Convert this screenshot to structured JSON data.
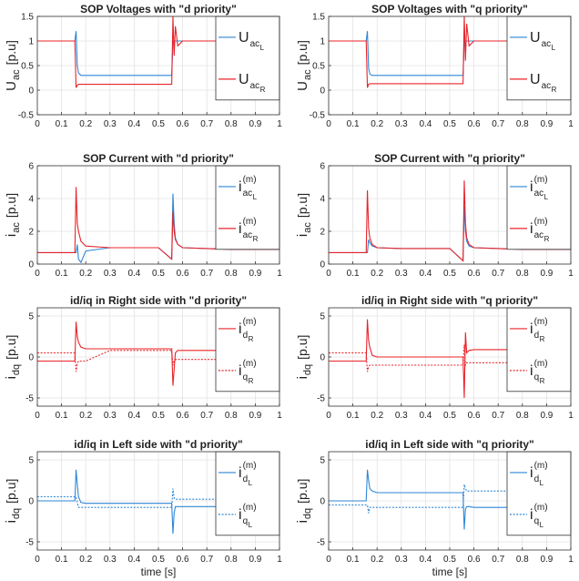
{
  "chart_data": [
    {
      "type": "line",
      "title": "SOP Voltages with \"d priority\"",
      "ylabel": {
        "main": "U",
        "sub": "ac",
        "unit": "[p.u]"
      },
      "x": [
        0,
        0.155,
        0.16,
        0.165,
        0.17,
        0.18,
        0.2,
        0.3,
        0.4,
        0.5,
        0.555,
        0.56,
        0.565,
        0.57,
        0.58,
        0.6,
        0.7,
        0.8,
        1
      ],
      "xlim": [
        0,
        1
      ],
      "xticks": [
        0,
        0.1,
        0.2,
        0.3,
        0.4,
        0.5,
        0.6,
        0.7,
        0.8,
        0.9,
        1
      ],
      "ylim": [
        -0.5,
        1.5
      ],
      "yticks": [
        -0.5,
        0,
        0.5,
        1,
        1.5
      ],
      "grid": true,
      "legend": "northeast",
      "series": [
        {
          "name": {
            "base": "U",
            "sub": "ac",
            "subsub": "L"
          },
          "color": "#2f86d6",
          "style": "solid",
          "values": [
            1,
            1,
            1.2,
            0.5,
            0.35,
            0.3,
            0.3,
            0.3,
            0.3,
            0.3,
            0.3,
            1.0,
            1.0,
            1.0,
            1.0,
            1,
            1,
            1,
            1
          ]
        },
        {
          "name": {
            "base": "U",
            "sub": "ac",
            "subsub": "R"
          },
          "color": "#e8242a",
          "style": "solid",
          "values": [
            1,
            1,
            0.05,
            0.1,
            0.12,
            0.12,
            0.12,
            0.12,
            0.12,
            0.12,
            0.12,
            1.5,
            0.7,
            1.3,
            0.9,
            1.0,
            1,
            1,
            1
          ]
        }
      ]
    },
    {
      "type": "line",
      "title": "SOP Voltages with \"q priority\"",
      "ylabel": {
        "main": "U",
        "sub": "ac",
        "unit": "[p.u]"
      },
      "x": [
        0,
        0.155,
        0.16,
        0.165,
        0.17,
        0.18,
        0.2,
        0.3,
        0.4,
        0.5,
        0.555,
        0.56,
        0.565,
        0.57,
        0.58,
        0.6,
        0.7,
        0.8,
        1
      ],
      "xlim": [
        0,
        1
      ],
      "xticks": [
        0,
        0.1,
        0.2,
        0.3,
        0.4,
        0.5,
        0.6,
        0.7,
        0.8,
        0.9,
        1
      ],
      "ylim": [
        -0.5,
        1.5
      ],
      "yticks": [
        -0.5,
        0,
        0.5,
        1,
        1.5
      ],
      "grid": true,
      "legend": "northeast",
      "series": [
        {
          "name": {
            "base": "U",
            "sub": "ac",
            "subsub": "L"
          },
          "color": "#2f86d6",
          "style": "solid",
          "values": [
            1,
            1,
            1.2,
            0.45,
            0.33,
            0.3,
            0.3,
            0.3,
            0.3,
            0.3,
            0.3,
            1.0,
            1.0,
            1.0,
            1.0,
            1,
            1,
            1,
            1
          ]
        },
        {
          "name": {
            "base": "U",
            "sub": "ac",
            "subsub": "R"
          },
          "color": "#e8242a",
          "style": "solid",
          "values": [
            1,
            1,
            0.05,
            0.12,
            0.13,
            0.13,
            0.13,
            0.13,
            0.13,
            0.13,
            0.13,
            1.5,
            0.6,
            1.35,
            0.9,
            1.0,
            1,
            1,
            1
          ]
        }
      ]
    },
    {
      "type": "line",
      "title": "SOP Current with \"d priority\"",
      "ylabel": {
        "main": "i",
        "sub": "ac",
        "unit": "[p.u]"
      },
      "x": [
        0,
        0.155,
        0.16,
        0.165,
        0.17,
        0.18,
        0.2,
        0.3,
        0.4,
        0.5,
        0.555,
        0.56,
        0.565,
        0.57,
        0.58,
        0.6,
        0.7,
        0.8,
        1
      ],
      "xlim": [
        0,
        1
      ],
      "xticks": [
        0,
        0.1,
        0.2,
        0.3,
        0.4,
        0.5,
        0.6,
        0.7,
        0.8,
        0.9,
        1
      ],
      "ylim": [
        0,
        6
      ],
      "yticks": [
        0,
        2,
        4,
        6
      ],
      "grid": true,
      "legend": "northeast",
      "series": [
        {
          "name": {
            "base": "i",
            "sup": "(m)",
            "sub": "ac",
            "subsub": "L"
          },
          "color": "#2f86d6",
          "style": "solid",
          "values": [
            0.7,
            0.7,
            0.7,
            1.2,
            0.3,
            0.1,
            0.8,
            1.0,
            1.0,
            1.0,
            0.3,
            4.3,
            2.5,
            1.6,
            1.2,
            1.0,
            0.95,
            0.9,
            0.9
          ]
        },
        {
          "name": {
            "base": "i",
            "sup": "(m)",
            "sub": "ac",
            "subsub": "R"
          },
          "color": "#e8242a",
          "style": "solid",
          "values": [
            0.7,
            0.7,
            4.7,
            2.5,
            2.0,
            1.4,
            1.1,
            1.0,
            1.0,
            1.0,
            0.3,
            3.2,
            2.0,
            1.5,
            1.2,
            1.0,
            0.95,
            0.9,
            0.9
          ]
        }
      ]
    },
    {
      "type": "line",
      "title": "SOP Current with \"q priority\"",
      "ylabel": {
        "main": "i",
        "sub": "ac",
        "unit": "[p.u]"
      },
      "x": [
        0,
        0.155,
        0.16,
        0.165,
        0.17,
        0.18,
        0.2,
        0.3,
        0.4,
        0.5,
        0.555,
        0.56,
        0.565,
        0.57,
        0.58,
        0.6,
        0.7,
        0.8,
        1
      ],
      "xlim": [
        0,
        1
      ],
      "xticks": [
        0,
        0.1,
        0.2,
        0.3,
        0.4,
        0.5,
        0.6,
        0.7,
        0.8,
        0.9,
        1
      ],
      "ylim": [
        0,
        6
      ],
      "yticks": [
        0,
        2,
        4,
        6
      ],
      "grid": true,
      "legend": "northeast",
      "series": [
        {
          "name": {
            "base": "i",
            "sup": "(m)",
            "sub": "ac",
            "subsub": "L"
          },
          "color": "#2f86d6",
          "style": "solid",
          "values": [
            0.7,
            0.7,
            0.7,
            1.5,
            1.3,
            1.1,
            1.0,
            0.95,
            0.95,
            0.95,
            0.2,
            3.5,
            2.0,
            1.4,
            1.1,
            1.0,
            0.95,
            0.9,
            0.9
          ]
        },
        {
          "name": {
            "base": "i",
            "sup": "(m)",
            "sub": "ac",
            "subsub": "R"
          },
          "color": "#e8242a",
          "style": "solid",
          "values": [
            0.7,
            0.7,
            4.5,
            2.2,
            1.6,
            1.2,
            1.0,
            0.95,
            0.95,
            0.95,
            0.2,
            5.1,
            2.5,
            1.6,
            1.2,
            1.0,
            0.95,
            0.9,
            0.9
          ]
        }
      ]
    },
    {
      "type": "line",
      "title": "id/iq in Right side with \"d priority\"",
      "ylabel": {
        "main": "i",
        "sub": "dq",
        "unit": "[p.u]"
      },
      "x": [
        0,
        0.155,
        0.16,
        0.165,
        0.17,
        0.18,
        0.2,
        0.3,
        0.4,
        0.5,
        0.555,
        0.56,
        0.565,
        0.57,
        0.58,
        0.6,
        0.7,
        0.8,
        1
      ],
      "xlim": [
        0,
        1
      ],
      "xticks": [
        0,
        0.1,
        0.2,
        0.3,
        0.4,
        0.5,
        0.6,
        0.7,
        0.8,
        0.9,
        1
      ],
      "ylim": [
        -6,
        6
      ],
      "yticks": [
        -5,
        0,
        5
      ],
      "grid": true,
      "legend": "northeast",
      "series": [
        {
          "name": {
            "base": "i",
            "sup": "(m)",
            "sub": "d",
            "subsub": "R"
          },
          "color": "#e8242a",
          "style": "solid",
          "values": [
            -0.5,
            -0.5,
            4.3,
            2.5,
            1.8,
            1.2,
            1.0,
            1.0,
            1.0,
            1.0,
            1.0,
            -3.5,
            -1.5,
            0.5,
            0.8,
            0.8,
            0.8,
            0.8,
            0.8
          ]
        },
        {
          "name": {
            "base": "i",
            "sup": "(m)",
            "sub": "q",
            "subsub": "R"
          },
          "color": "#e8242a",
          "style": "dotted",
          "values": [
            0.5,
            0.5,
            -1.8,
            -0.8,
            -0.5,
            -0.5,
            -0.5,
            0.8,
            0.8,
            0.8,
            0.8,
            -1.0,
            -0.5,
            -0.3,
            -0.3,
            -0.3,
            -0.3,
            -0.3,
            -0.3
          ]
        }
      ]
    },
    {
      "type": "line",
      "title": "id/iq in Right side with \"q priority\"",
      "ylabel": {
        "main": "i",
        "sub": "dq",
        "unit": "[p.u]"
      },
      "x": [
        0,
        0.155,
        0.16,
        0.165,
        0.17,
        0.18,
        0.2,
        0.3,
        0.4,
        0.5,
        0.555,
        0.56,
        0.565,
        0.57,
        0.58,
        0.6,
        0.7,
        0.8,
        1
      ],
      "xlim": [
        0,
        1
      ],
      "xticks": [
        0,
        0.1,
        0.2,
        0.3,
        0.4,
        0.5,
        0.6,
        0.7,
        0.8,
        0.9,
        1
      ],
      "ylim": [
        -6,
        6
      ],
      "yticks": [
        -5,
        0,
        5
      ],
      "grid": true,
      "legend": "northeast",
      "series": [
        {
          "name": {
            "base": "i",
            "sup": "(m)",
            "sub": "d",
            "subsub": "R"
          },
          "color": "#e8242a",
          "style": "solid",
          "values": [
            -0.5,
            -0.5,
            4.6,
            2.0,
            1.2,
            0.2,
            0,
            0,
            0,
            0,
            0,
            -5.0,
            3.0,
            0.5,
            0.8,
            0.9,
            0.9,
            0.9,
            0.9
          ]
        },
        {
          "name": {
            "base": "i",
            "sup": "(m)",
            "sub": "q",
            "subsub": "R"
          },
          "color": "#e8242a",
          "style": "dotted",
          "values": [
            0.5,
            0.5,
            -1.8,
            -1.2,
            -1.0,
            -1.0,
            -1.0,
            -1.0,
            -1.0,
            -1.0,
            -1.0,
            1.5,
            -1.0,
            -0.7,
            -0.7,
            -0.7,
            -0.7,
            -0.7,
            -0.7
          ]
        }
      ]
    },
    {
      "type": "line",
      "title": "id/iq in Left side with \"d priority\"",
      "ylabel": {
        "main": "i",
        "sub": "dq",
        "unit": "[p.u]"
      },
      "xlabel": "time [s]",
      "x": [
        0,
        0.155,
        0.16,
        0.165,
        0.17,
        0.18,
        0.2,
        0.3,
        0.4,
        0.5,
        0.555,
        0.56,
        0.565,
        0.57,
        0.58,
        0.6,
        0.7,
        0.8,
        1
      ],
      "xlim": [
        0,
        1
      ],
      "xticks": [
        0,
        0.1,
        0.2,
        0.3,
        0.4,
        0.5,
        0.6,
        0.7,
        0.8,
        0.9,
        1
      ],
      "ylim": [
        -6,
        6
      ],
      "yticks": [
        -5,
        0,
        5
      ],
      "grid": true,
      "legend": "northeast",
      "series": [
        {
          "name": {
            "base": "i",
            "sup": "(m)",
            "sub": "d",
            "subsub": "L"
          },
          "color": "#2f86d6",
          "style": "solid",
          "values": [
            0,
            0,
            3.8,
            2.0,
            0.5,
            -0.2,
            -0.3,
            -0.3,
            -0.3,
            -0.3,
            -0.3,
            -4.0,
            -1.5,
            -0.7,
            -0.7,
            -0.7,
            -0.7,
            -0.7,
            -0.7
          ]
        },
        {
          "name": {
            "base": "i",
            "sup": "(m)",
            "sub": "q",
            "subsub": "L"
          },
          "color": "#2f86d6",
          "style": "dotted",
          "values": [
            0.5,
            0.5,
            0.5,
            -0.2,
            -0.8,
            -0.8,
            -0.8,
            -0.8,
            -0.8,
            -0.8,
            -0.8,
            1.5,
            0.3,
            0.2,
            0.2,
            0.2,
            0.2,
            0.2,
            0.2
          ]
        }
      ]
    },
    {
      "type": "line",
      "title": "id/iq in Left side with \"q priority\"",
      "ylabel": {
        "main": "i",
        "sub": "dq",
        "unit": "[p.u]"
      },
      "xlabel": "time [s]",
      "x": [
        0,
        0.155,
        0.16,
        0.165,
        0.17,
        0.18,
        0.2,
        0.3,
        0.4,
        0.5,
        0.555,
        0.56,
        0.565,
        0.57,
        0.58,
        0.6,
        0.7,
        0.8,
        1
      ],
      "xlim": [
        0,
        1
      ],
      "xticks": [
        0,
        0.1,
        0.2,
        0.3,
        0.4,
        0.5,
        0.6,
        0.7,
        0.8,
        0.9,
        1
      ],
      "ylim": [
        -6,
        6
      ],
      "yticks": [
        -5,
        0,
        5
      ],
      "grid": true,
      "legend": "northeast",
      "series": [
        {
          "name": {
            "base": "i",
            "sup": "(m)",
            "sub": "d",
            "subsub": "L"
          },
          "color": "#2f86d6",
          "style": "solid",
          "values": [
            0,
            0,
            3.8,
            2.5,
            1.5,
            1.2,
            1.0,
            1.0,
            1.0,
            1.0,
            1.0,
            -3.5,
            -1.0,
            -0.7,
            -0.7,
            -0.8,
            -0.8,
            -0.8,
            -0.8
          ]
        },
        {
          "name": {
            "base": "i",
            "sup": "(m)",
            "sub": "q",
            "subsub": "L"
          },
          "color": "#2f86d6",
          "style": "dotted",
          "values": [
            -0.5,
            -0.5,
            -0.5,
            -1.5,
            -0.8,
            -0.8,
            -0.8,
            -0.8,
            -0.8,
            -0.8,
            -0.8,
            2.0,
            1.5,
            1.2,
            1.2,
            1.2,
            1.2,
            1.2,
            1.2
          ]
        }
      ]
    }
  ]
}
